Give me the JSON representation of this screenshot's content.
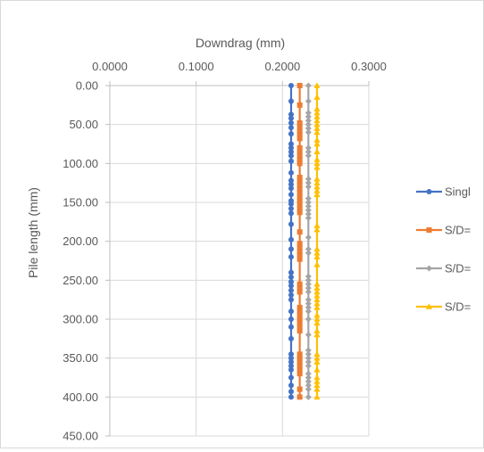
{
  "chart_data": {
    "type": "scatter",
    "title": "",
    "xlabel": "Downdrag (mm)",
    "ylabel": "Pile length (mm)",
    "xlim": [
      0,
      0.3
    ],
    "ylim": [
      450,
      0
    ],
    "x_axis_position": "top",
    "y_axis_reversed": true,
    "grid": true,
    "x_ticks": [
      {
        "value": 0.0,
        "label": "0.0000"
      },
      {
        "value": 0.1,
        "label": "0.1000"
      },
      {
        "value": 0.2,
        "label": "0.2000"
      },
      {
        "value": 0.3,
        "label": "0.3000"
      }
    ],
    "y_ticks": [
      {
        "value": 0,
        "label": "0.00"
      },
      {
        "value": 50,
        "label": "50.00"
      },
      {
        "value": 100,
        "label": "100.00"
      },
      {
        "value": 150,
        "label": "150.00"
      },
      {
        "value": 200,
        "label": "200.00"
      },
      {
        "value": 250,
        "label": "250.00"
      },
      {
        "value": 300,
        "label": "300.00"
      },
      {
        "value": 350,
        "label": "350.00"
      },
      {
        "value": 400,
        "label": "400.00"
      },
      {
        "value": 450,
        "label": "450.00"
      }
    ],
    "legend_position": "right",
    "series": [
      {
        "name": "Singl",
        "color": "#4472C4",
        "marker": "circle",
        "x": [
          0.21,
          0.21,
          0.21,
          0.21,
          0.21,
          0.21,
          0.21,
          0.21,
          0.21,
          0.21,
          0.21,
          0.21,
          0.21,
          0.21,
          0.21,
          0.21,
          0.21,
          0.21,
          0.21,
          0.21,
          0.21,
          0.21,
          0.21,
          0.21,
          0.21,
          0.21,
          0.21,
          0.21,
          0.21,
          0.21,
          0.21,
          0.21,
          0.21,
          0.21,
          0.21,
          0.21,
          0.21,
          0.21,
          0.21,
          0.21,
          0.21,
          0.21,
          0.21,
          0.21,
          0.21
        ],
        "y": [
          0,
          20,
          37,
          42,
          48,
          54,
          62,
          75,
          80,
          85,
          90,
          97,
          112,
          122,
          127,
          132,
          140,
          148,
          152,
          158,
          164,
          178,
          198,
          210,
          220,
          240,
          246,
          252,
          257,
          263,
          269,
          275,
          290,
          300,
          310,
          325,
          345,
          350,
          355,
          360,
          365,
          375,
          385,
          393,
          400
        ]
      },
      {
        "name": "S/D=",
        "color": "#ED7D31",
        "marker": "square",
        "x": [
          0.22,
          0.22,
          0.22,
          0.22,
          0.22,
          0.22,
          0.22,
          0.22,
          0.22,
          0.22,
          0.22,
          0.22,
          0.22,
          0.22,
          0.22,
          0.22,
          0.22,
          0.22,
          0.22,
          0.22,
          0.22,
          0.22,
          0.22,
          0.22,
          0.22,
          0.22,
          0.22,
          0.22,
          0.22,
          0.22,
          0.22,
          0.22,
          0.22,
          0.22,
          0.22,
          0.22,
          0.22,
          0.22,
          0.22,
          0.22,
          0.22,
          0.22,
          0.22,
          0.22,
          0.22,
          0.22
        ],
        "y": [
          0,
          25,
          48,
          53,
          58,
          63,
          68,
          80,
          85,
          90,
          95,
          100,
          118,
          123,
          128,
          133,
          138,
          143,
          148,
          153,
          158,
          163,
          188,
          203,
          208,
          213,
          218,
          223,
          255,
          260,
          265,
          285,
          290,
          295,
          300,
          305,
          310,
          315,
          345,
          350,
          355,
          360,
          365,
          370,
          390,
          400
        ]
      },
      {
        "name": "S/D=",
        "color": "#A5A5A5",
        "marker": "diamond",
        "x": [
          0.23,
          0.23,
          0.23,
          0.23,
          0.23,
          0.23,
          0.23,
          0.23,
          0.23,
          0.23,
          0.23,
          0.23,
          0.23,
          0.23,
          0.23,
          0.23,
          0.23,
          0.23,
          0.23,
          0.23,
          0.23,
          0.23,
          0.23,
          0.23,
          0.23,
          0.23,
          0.23,
          0.23,
          0.23,
          0.23,
          0.23,
          0.23,
          0.23,
          0.23,
          0.23,
          0.23,
          0.23,
          0.23,
          0.23,
          0.23,
          0.23,
          0.23,
          0.23,
          0.23,
          0.23
        ],
        "y": [
          0,
          20,
          35,
          40,
          45,
          50,
          55,
          60,
          80,
          85,
          90,
          120,
          125,
          130,
          145,
          150,
          155,
          160,
          165,
          170,
          195,
          210,
          215,
          245,
          250,
          255,
          260,
          265,
          275,
          280,
          285,
          290,
          300,
          320,
          340,
          345,
          350,
          355,
          360,
          370,
          375,
          380,
          385,
          390,
          400
        ]
      },
      {
        "name": "S/D=",
        "color": "#FFC000",
        "marker": "triangle",
        "x": [
          0.24,
          0.24,
          0.24,
          0.24,
          0.24,
          0.24,
          0.24,
          0.24,
          0.24,
          0.24,
          0.24,
          0.24,
          0.24,
          0.24,
          0.24,
          0.24,
          0.24,
          0.24,
          0.24,
          0.24,
          0.24,
          0.24,
          0.24,
          0.24,
          0.24,
          0.24,
          0.24,
          0.24,
          0.24,
          0.24,
          0.24,
          0.24,
          0.24,
          0.24,
          0.24,
          0.24,
          0.24,
          0.24,
          0.24,
          0.24,
          0.24,
          0.24,
          0.24,
          0.24,
          0.24,
          0.24,
          0.24
        ],
        "y": [
          0,
          15,
          30,
          35,
          40,
          45,
          50,
          55,
          60,
          70,
          75,
          85,
          95,
          100,
          105,
          120,
          125,
          130,
          135,
          140,
          180,
          185,
          210,
          215,
          220,
          230,
          255,
          260,
          265,
          270,
          275,
          280,
          285,
          295,
          300,
          305,
          315,
          320,
          345,
          350,
          355,
          365,
          375,
          380,
          385,
          390,
          400
        ]
      }
    ]
  }
}
